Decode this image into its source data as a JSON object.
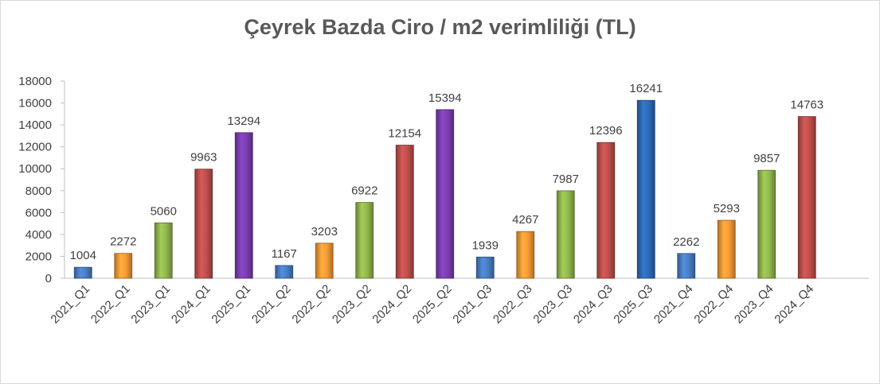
{
  "chart_data": {
    "type": "bar",
    "title": "Çeyrek Bazda Ciro / m2 verimliliği (TL)",
    "xlabel": "",
    "ylabel": "",
    "ylim": [
      0,
      18000
    ],
    "yticks": [
      0,
      2000,
      4000,
      6000,
      8000,
      10000,
      12000,
      14000,
      16000,
      18000
    ],
    "grid": false,
    "legend": "none",
    "groups": [
      {
        "categories": [
          "2021_Q1",
          "2022_Q1",
          "2023_Q1",
          "2024_Q1",
          "2025_Q1"
        ],
        "values": [
          1004,
          2272,
          5060,
          9963,
          13294
        ]
      },
      {
        "categories": [
          "2021_Q2",
          "2022_Q2",
          "2023_Q2",
          "2024_Q2",
          "2025_Q2"
        ],
        "values": [
          1167,
          3203,
          6922,
          12154,
          15394
        ]
      },
      {
        "categories": [
          "2021_Q3",
          "2022_Q3",
          "2023_Q3",
          "2024_Q3",
          "2025_Q3"
        ],
        "values": [
          1939,
          4267,
          7987,
          12396,
          16241
        ]
      },
      {
        "categories": [
          "2021_Q4",
          "2022_Q4",
          "2023_Q4",
          "2024_Q4"
        ],
        "values": [
          2262,
          5293,
          9857,
          14763
        ]
      }
    ],
    "colors_by_group": [
      [
        "#4a7fc6",
        "#f79b36",
        "#92b84e",
        "#c0504d",
        "#7b3fb3"
      ],
      [
        "#4a7fc6",
        "#f79b36",
        "#92b84e",
        "#c0504d",
        "#7b3fb3"
      ],
      [
        "#4a7fc6",
        "#f79b36",
        "#92b84e",
        "#c0504d",
        "#2e6bb8"
      ],
      [
        "#4a7fc6",
        "#f79b36",
        "#92b84e",
        "#c0504d"
      ]
    ],
    "axis_color": "#bfbfbf",
    "text_color": "#404040"
  }
}
